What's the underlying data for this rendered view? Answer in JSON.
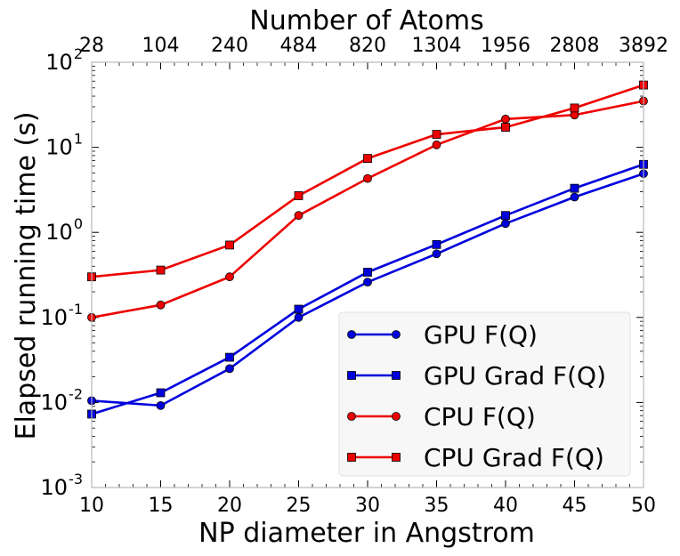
{
  "chart_data": {
    "type": "line",
    "x_scale": "linear",
    "y_scale": "log",
    "x": [
      10,
      15,
      20,
      25,
      30,
      35,
      40,
      45,
      50
    ],
    "xlim": [
      10,
      50
    ],
    "ylim": [
      0.001,
      100
    ],
    "xlabel": "NP diameter in Angstrom",
    "ylabel": "Elapsed running time (s)",
    "top_xlabel": "Number of Atoms",
    "x_ticks": [
      "10",
      "15",
      "20",
      "25",
      "30",
      "35",
      "40",
      "45",
      "50"
    ],
    "top_x_ticks": [
      "28",
      "104",
      "240",
      "484",
      "820",
      "1304",
      "1956",
      "2808",
      "3892"
    ],
    "y_ticks": [
      {
        "base": "10",
        "exp": "-3"
      },
      {
        "base": "10",
        "exp": "-2"
      },
      {
        "base": "10",
        "exp": "-1"
      },
      {
        "base": "10",
        "exp": "0"
      },
      {
        "base": "10",
        "exp": "1"
      },
      {
        "base": "10",
        "exp": "2"
      }
    ],
    "grid": false,
    "legend_position": "lower-right",
    "series": [
      {
        "name": "GPU F(Q)",
        "color": "#0000dd",
        "marker": "circle",
        "values": [
          0.0105,
          0.0092,
          0.025,
          0.1,
          0.26,
          0.56,
          1.27,
          2.6,
          4.9
        ]
      },
      {
        "name": "GPU Grad F(Q)",
        "color": "#0000dd",
        "marker": "square",
        "values": [
          0.0073,
          0.013,
          0.034,
          0.125,
          0.34,
          0.72,
          1.58,
          3.3,
          6.3
        ]
      },
      {
        "name": "CPU F(Q)",
        "color": "#ee0000",
        "marker": "circle",
        "values": [
          0.1,
          0.14,
          0.3,
          1.58,
          4.3,
          10.7,
          21.5,
          24,
          35
        ]
      },
      {
        "name": "CPU Grad F(Q)",
        "color": "#ee0000",
        "marker": "square",
        "values": [
          0.3,
          0.36,
          0.71,
          2.7,
          7.4,
          14.2,
          17.2,
          29,
          54
        ]
      }
    ]
  }
}
